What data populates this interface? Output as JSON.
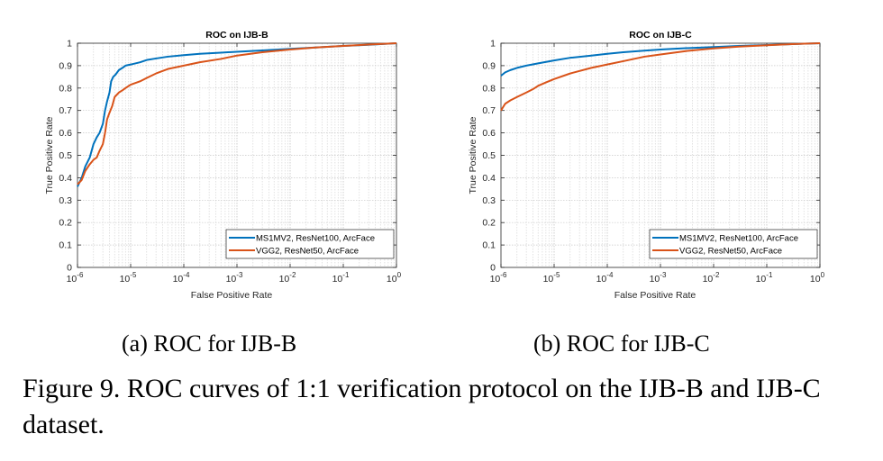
{
  "figure": {
    "caption": "Figure 9. ROC curves of 1:1 verification protocol on the IJB-B and IJB-C dataset.",
    "subcaptions": [
      "(a)  ROC for IJB-B",
      "(b)  ROC for IJB-C"
    ]
  },
  "chart_data": [
    {
      "type": "line",
      "title": "ROC on IJB-B",
      "xlabel": "False Positive Rate",
      "ylabel": "True Positive Rate",
      "xscale": "log",
      "xlim": [
        1e-06,
        1
      ],
      "ylim": [
        0,
        1
      ],
      "xticks": [
        1e-06,
        1e-05,
        0.0001,
        0.001,
        0.01,
        0.1,
        1
      ],
      "xtick_exponents": [
        "-6",
        "-5",
        "-4",
        "-3",
        "-2",
        "-1",
        "0"
      ],
      "yticks": [
        0,
        0.1,
        0.2,
        0.3,
        0.4,
        0.5,
        0.6,
        0.7,
        0.8,
        0.9,
        1
      ],
      "ytick_labels": [
        "0",
        "0.1",
        "0.2",
        "0.3",
        "0.4",
        "0.5",
        "0.6",
        "0.7",
        "0.8",
        "0.9",
        "1"
      ],
      "grid": true,
      "legend_position": "bottom-right",
      "series": [
        {
          "name": "MS1MV2, ResNet100, ArcFace",
          "color": "#0072bd",
          "x": [
            1e-06,
            1.2e-06,
            1.4e-06,
            1.7e-06,
            2e-06,
            2.3e-06,
            2.6e-06,
            3e-06,
            3.3e-06,
            3.6e-06,
            4e-06,
            4.3e-06,
            4.7e-06,
            5.2e-06,
            6e-06,
            7e-06,
            8e-06,
            1e-05,
            1.5e-05,
            2e-05,
            3e-05,
            5e-05,
            0.0001,
            0.0002,
            0.0005,
            0.001,
            0.003,
            0.01,
            0.03,
            0.1,
            0.3,
            1
          ],
          "y": [
            0.36,
            0.4,
            0.45,
            0.49,
            0.55,
            0.58,
            0.6,
            0.64,
            0.7,
            0.74,
            0.78,
            0.83,
            0.85,
            0.86,
            0.88,
            0.89,
            0.9,
            0.905,
            0.915,
            0.925,
            0.932,
            0.94,
            0.947,
            0.953,
            0.958,
            0.962,
            0.968,
            0.975,
            0.981,
            0.988,
            0.993,
            1.0
          ]
        },
        {
          "name": "VGG2, ResNet50, ArcFace",
          "color": "#d95319",
          "x": [
            1e-06,
            1.2e-06,
            1.4e-06,
            1.7e-06,
            2e-06,
            2.3e-06,
            2.6e-06,
            3e-06,
            3.3e-06,
            3.6e-06,
            4e-06,
            4.5e-06,
            5e-06,
            6e-06,
            7e-06,
            8e-06,
            1e-05,
            1.5e-05,
            2e-05,
            3e-05,
            5e-05,
            0.0001,
            0.0002,
            0.0005,
            0.001,
            0.003,
            0.01,
            0.03,
            0.1,
            0.3,
            1
          ],
          "y": [
            0.37,
            0.39,
            0.43,
            0.46,
            0.48,
            0.49,
            0.52,
            0.55,
            0.6,
            0.66,
            0.69,
            0.72,
            0.76,
            0.78,
            0.79,
            0.8,
            0.815,
            0.83,
            0.845,
            0.865,
            0.885,
            0.9,
            0.915,
            0.93,
            0.945,
            0.96,
            0.972,
            0.981,
            0.988,
            0.994,
            1.0
          ]
        }
      ]
    },
    {
      "type": "line",
      "title": "ROC on IJB-C",
      "xlabel": "False Positive Rate",
      "ylabel": "True Positive Rate",
      "xscale": "log",
      "xlim": [
        1e-06,
        1
      ],
      "ylim": [
        0,
        1
      ],
      "xticks": [
        1e-06,
        1e-05,
        0.0001,
        0.001,
        0.01,
        0.1,
        1
      ],
      "xtick_exponents": [
        "-6",
        "-5",
        "-4",
        "-3",
        "-2",
        "-1",
        "0"
      ],
      "yticks": [
        0,
        0.1,
        0.2,
        0.3,
        0.4,
        0.5,
        0.6,
        0.7,
        0.8,
        0.9,
        1
      ],
      "ytick_labels": [
        "0",
        "0.1",
        "0.2",
        "0.3",
        "0.4",
        "0.5",
        "0.6",
        "0.7",
        "0.8",
        "0.9",
        "1"
      ],
      "grid": true,
      "legend_position": "bottom-right",
      "series": [
        {
          "name": "MS1MV2, ResNet100, ArcFace",
          "color": "#0072bd",
          "x": [
            1e-06,
            1.2e-06,
            1.5e-06,
            2e-06,
            3e-06,
            5e-06,
            1e-05,
            2e-05,
            5e-05,
            0.0001,
            0.0002,
            0.0005,
            0.001,
            0.003,
            0.01,
            0.03,
            0.1,
            0.3,
            1
          ],
          "y": [
            0.855,
            0.87,
            0.88,
            0.89,
            0.9,
            0.91,
            0.923,
            0.935,
            0.945,
            0.953,
            0.96,
            0.967,
            0.972,
            0.978,
            0.983,
            0.988,
            0.992,
            0.996,
            1.0
          ]
        },
        {
          "name": "VGG2, ResNet50, ArcFace",
          "color": "#d95319",
          "x": [
            1e-06,
            1.2e-06,
            1.5e-06,
            2e-06,
            3e-06,
            4e-06,
            5e-06,
            7e-06,
            1e-05,
            2e-05,
            5e-05,
            0.0001,
            0.0002,
            0.0005,
            0.001,
            0.003,
            0.01,
            0.03,
            0.1,
            0.3,
            1
          ],
          "y": [
            0.7,
            0.73,
            0.745,
            0.76,
            0.78,
            0.795,
            0.81,
            0.825,
            0.84,
            0.865,
            0.89,
            0.905,
            0.92,
            0.94,
            0.95,
            0.965,
            0.977,
            0.985,
            0.991,
            0.996,
            1.0
          ]
        }
      ]
    }
  ]
}
